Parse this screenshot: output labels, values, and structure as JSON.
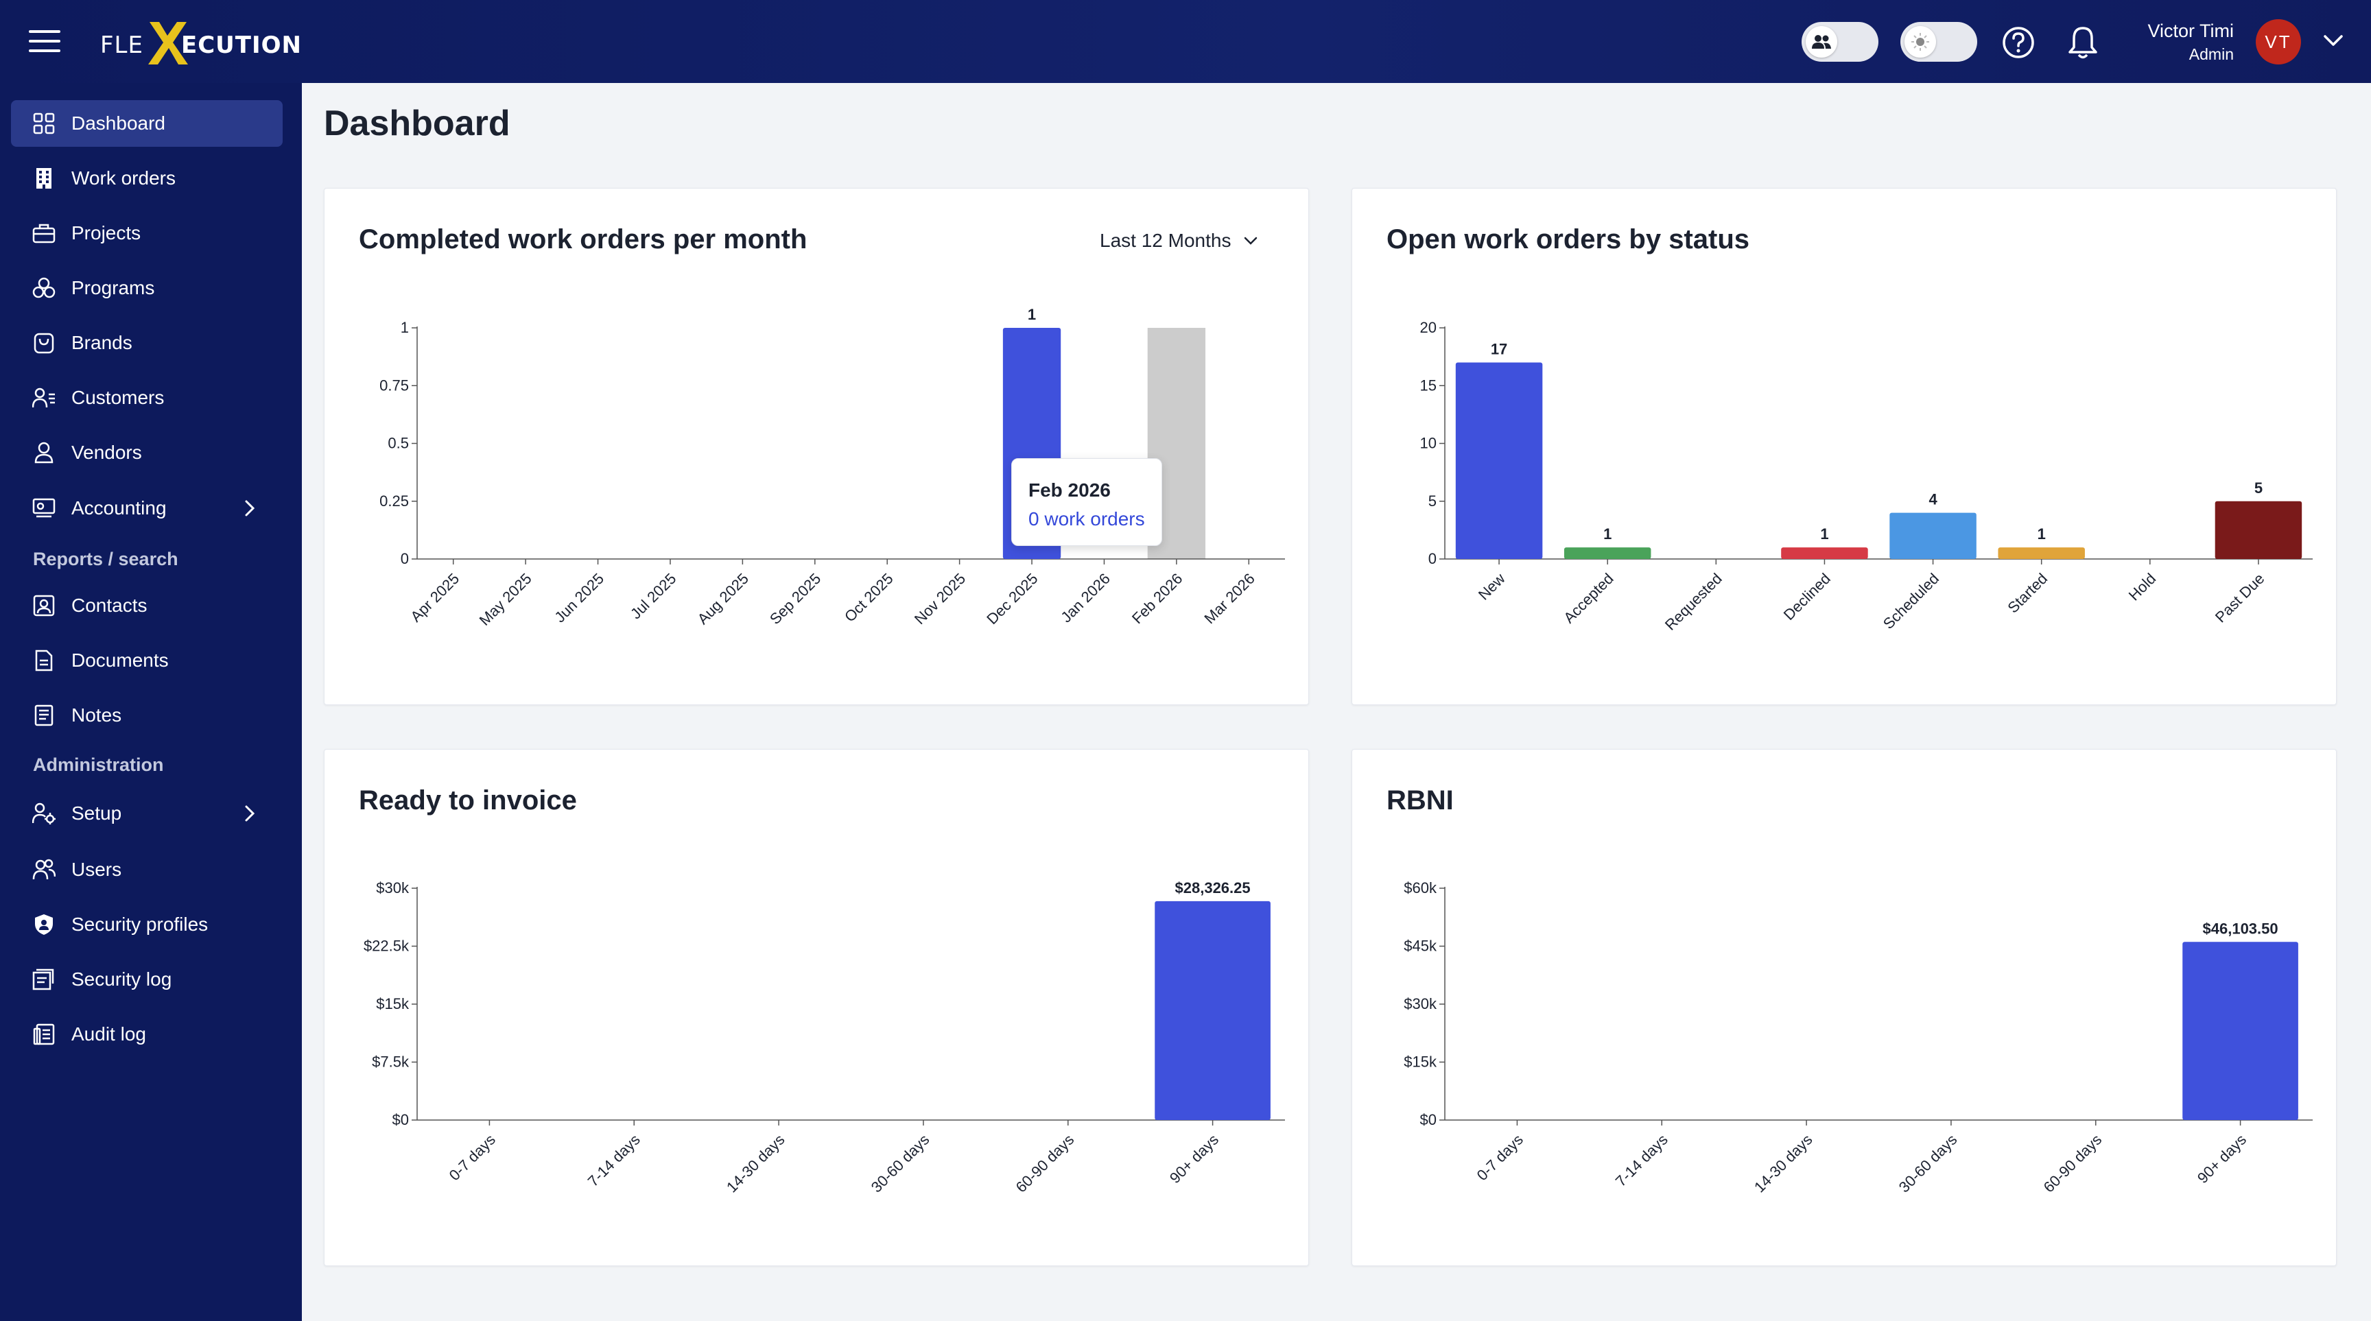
{
  "app": {
    "brand_left": "FLE",
    "brand_right": "ECUTION"
  },
  "topbar": {
    "user_name": "Victor Timi",
    "user_role": "Admin",
    "avatar_initials": "VT"
  },
  "sidebar": {
    "items": [
      {
        "label": "Dashboard"
      },
      {
        "label": "Work orders"
      },
      {
        "label": "Projects"
      },
      {
        "label": "Programs"
      },
      {
        "label": "Brands"
      },
      {
        "label": "Customers"
      },
      {
        "label": "Vendors"
      },
      {
        "label": "Accounting"
      }
    ],
    "section_reports": "Reports / search",
    "reports_items": [
      {
        "label": "Contacts"
      },
      {
        "label": "Documents"
      },
      {
        "label": "Notes"
      }
    ],
    "section_admin": "Administration",
    "admin_items": [
      {
        "label": "Setup"
      },
      {
        "label": "Users"
      },
      {
        "label": "Security profiles"
      },
      {
        "label": "Security log"
      },
      {
        "label": "Audit log"
      }
    ]
  },
  "main": {
    "title": "Dashboard",
    "cards": [
      {
        "title": "Completed work orders per month",
        "period": "Last 12 Months"
      },
      {
        "title": "Open work orders by status"
      },
      {
        "title": "Ready to invoice"
      },
      {
        "title": "RBNI"
      }
    ],
    "tooltip": {
      "title": "Feb 2026",
      "value": "0 work orders"
    }
  },
  "colors": {
    "brand_navy": "#0d1a5c",
    "primary_blue": "#3f51dc",
    "hover_gray": "#cccccc",
    "avatar_red": "#c0271c"
  },
  "chart_data": [
    {
      "type": "bar",
      "categories": [
        "Apr 2025",
        "May 2025",
        "Jun 2025",
        "Jul 2025",
        "Aug 2025",
        "Sep 2025",
        "Oct 2025",
        "Nov 2025",
        "Dec 2025",
        "Jan 2026",
        "Feb 2026",
        "Mar 2026"
      ],
      "values": [
        0,
        0,
        0,
        0,
        0,
        0,
        0,
        0,
        1,
        0,
        0,
        0
      ],
      "value_labels": [
        "",
        "",
        "",
        "",
        "",
        "",
        "",
        "",
        "1",
        "",
        "",
        ""
      ],
      "yticks": [
        "0",
        "0.25",
        "0.5",
        "0.75",
        "1"
      ],
      "ylim": [
        0,
        1
      ],
      "color": "#3f51dc",
      "hover_index": 10,
      "hover_color": "#cccccc"
    },
    {
      "type": "bar",
      "categories": [
        "New",
        "Accepted",
        "Requested",
        "Declined",
        "Scheduled",
        "Started",
        "Hold",
        "Past Due"
      ],
      "values": [
        17,
        1,
        0,
        1,
        4,
        1,
        0,
        5
      ],
      "value_labels": [
        "17",
        "1",
        "",
        "1",
        "4",
        "1",
        "",
        "5"
      ],
      "colors": [
        "#3f51dc",
        "#4aa35a",
        "#999999",
        "#d63a45",
        "#4b97e3",
        "#e0a43a",
        "#999999",
        "#7a1a1a"
      ],
      "yticks": [
        "0",
        "5",
        "10",
        "15",
        "20"
      ],
      "ylim": [
        0,
        20
      ]
    },
    {
      "type": "bar",
      "categories": [
        "0-7 days",
        "7-14 days",
        "14-30 days",
        "30-60 days",
        "60-90 days",
        "90+ days"
      ],
      "values": [
        0,
        0,
        0,
        0,
        0,
        28326.25
      ],
      "value_labels": [
        "",
        "",
        "",
        "",
        "",
        "$28,326.25"
      ],
      "yticks": [
        "$0",
        "$7.5k",
        "$15k",
        "$22.5k",
        "$30k"
      ],
      "ylim": [
        0,
        30000
      ],
      "color": "#3f51dc"
    },
    {
      "type": "bar",
      "categories": [
        "0-7 days",
        "7-14 days",
        "14-30 days",
        "30-60 days",
        "60-90 days",
        "90+ days"
      ],
      "values": [
        0,
        0,
        0,
        0,
        0,
        46103.5
      ],
      "value_labels": [
        "",
        "",
        "",
        "",
        "",
        "$46,103.50"
      ],
      "yticks": [
        "$0",
        "$15k",
        "$30k",
        "$45k",
        "$60k"
      ],
      "ylim": [
        0,
        60000
      ],
      "color": "#3f51dc"
    }
  ]
}
